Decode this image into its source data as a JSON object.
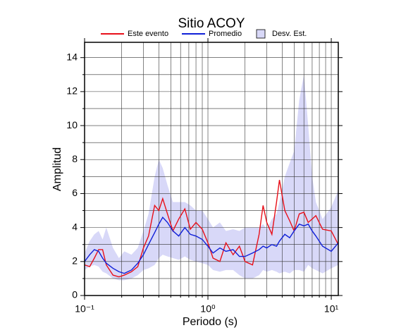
{
  "chart_data": {
    "type": "line",
    "title": "Sitio ACOY",
    "xlabel": "Periodo (s)",
    "ylabel": "Amplitud",
    "xscale": "log",
    "grid": true,
    "xlim": [
      0.1,
      11.4
    ],
    "ylim": [
      0,
      14.9
    ],
    "xticks": [
      {
        "value": 0.1,
        "label": "10⁻¹"
      },
      {
        "value": 1,
        "label": "10⁰"
      },
      {
        "value": 10,
        "label": "10¹"
      }
    ],
    "xminor": [
      0.2,
      0.3,
      0.4,
      0.5,
      0.6,
      0.7,
      0.8,
      0.9,
      2,
      3,
      4,
      5,
      6,
      7,
      8,
      9
    ],
    "yticks": [
      0,
      2,
      4,
      6,
      8,
      10,
      12,
      14
    ],
    "yminor": [
      1,
      3,
      5,
      7,
      9,
      11,
      13
    ],
    "x": [
      0.1,
      0.11,
      0.12,
      0.13,
      0.14,
      0.15,
      0.17,
      0.19,
      0.21,
      0.24,
      0.27,
      0.3,
      0.33,
      0.37,
      0.4,
      0.43,
      0.47,
      0.52,
      0.58,
      0.65,
      0.72,
      0.8,
      0.9,
      1.0,
      1.1,
      1.25,
      1.4,
      1.6,
      1.8,
      2.0,
      2.3,
      2.6,
      2.8,
      3.0,
      3.3,
      3.6,
      3.8,
      4.2,
      4.6,
      5.0,
      5.5,
      6.0,
      6.5,
      7.0,
      7.5,
      8.5,
      10,
      11.4
    ],
    "series": [
      {
        "name": "Este evento",
        "color": "#e8101a",
        "values": [
          1.8,
          1.7,
          2.2,
          2.7,
          2.7,
          1.8,
          1.2,
          1.1,
          1.2,
          1.4,
          1.7,
          2.8,
          3.5,
          5.3,
          5.0,
          5.7,
          4.8,
          3.8,
          4.5,
          5.1,
          3.9,
          4.3,
          3.9,
          3.1,
          2.2,
          2.0,
          3.1,
          2.4,
          2.9,
          2.0,
          1.8,
          3.6,
          5.3,
          4.3,
          3.6,
          5.5,
          6.8,
          5.0,
          4.4,
          3.8,
          4.8,
          4.9,
          4.3,
          4.5,
          4.7,
          3.9,
          3.8,
          3.0
        ]
      },
      {
        "name": "Promedio",
        "color": "#1020d8",
        "values": [
          2.0,
          2.4,
          2.7,
          2.6,
          2.2,
          1.9,
          1.6,
          1.4,
          1.3,
          1.5,
          1.9,
          2.4,
          3.0,
          3.7,
          4.2,
          4.6,
          4.3,
          3.8,
          3.5,
          4.0,
          3.6,
          3.5,
          3.3,
          2.9,
          2.5,
          2.8,
          2.6,
          2.7,
          2.3,
          2.3,
          2.5,
          2.7,
          2.9,
          2.8,
          3.0,
          2.9,
          3.2,
          3.6,
          3.4,
          3.8,
          4.2,
          4.1,
          4.2,
          3.8,
          3.5,
          2.9,
          2.6,
          3.1
        ]
      }
    ],
    "band": {
      "name": "Desv. Est.",
      "color": "#d8d8f8",
      "upper": [
        2.5,
        3.2,
        3.6,
        3.8,
        3.3,
        4.0,
        2.8,
        2.2,
        2.6,
        2.4,
        2.8,
        3.8,
        4.8,
        7.0,
        8.0,
        7.5,
        6.5,
        5.5,
        5.5,
        5.5,
        5.3,
        5.0,
        5.0,
        4.5,
        4.0,
        4.3,
        3.8,
        3.9,
        3.8,
        4.0,
        4.0,
        4.0,
        4.2,
        3.9,
        4.5,
        4.8,
        5.5,
        7.0,
        7.8,
        8.5,
        11.5,
        13.0,
        10.0,
        7.0,
        5.5,
        4.5,
        5.2,
        6.2
      ],
      "lower": [
        1.5,
        1.7,
        1.8,
        1.7,
        1.4,
        1.3,
        1.0,
        0.9,
        0.9,
        1.0,
        1.2,
        1.5,
        1.6,
        1.8,
        2.2,
        2.4,
        2.3,
        2.2,
        2.1,
        2.3,
        2.1,
        2.0,
        1.9,
        1.8,
        1.5,
        1.4,
        1.5,
        1.5,
        1.2,
        1.0,
        1.0,
        1.2,
        1.5,
        1.4,
        1.5,
        1.4,
        1.3,
        1.4,
        1.3,
        1.5,
        1.5,
        1.4,
        1.8,
        1.6,
        1.5,
        1.3,
        1.6,
        1.8
      ]
    }
  }
}
